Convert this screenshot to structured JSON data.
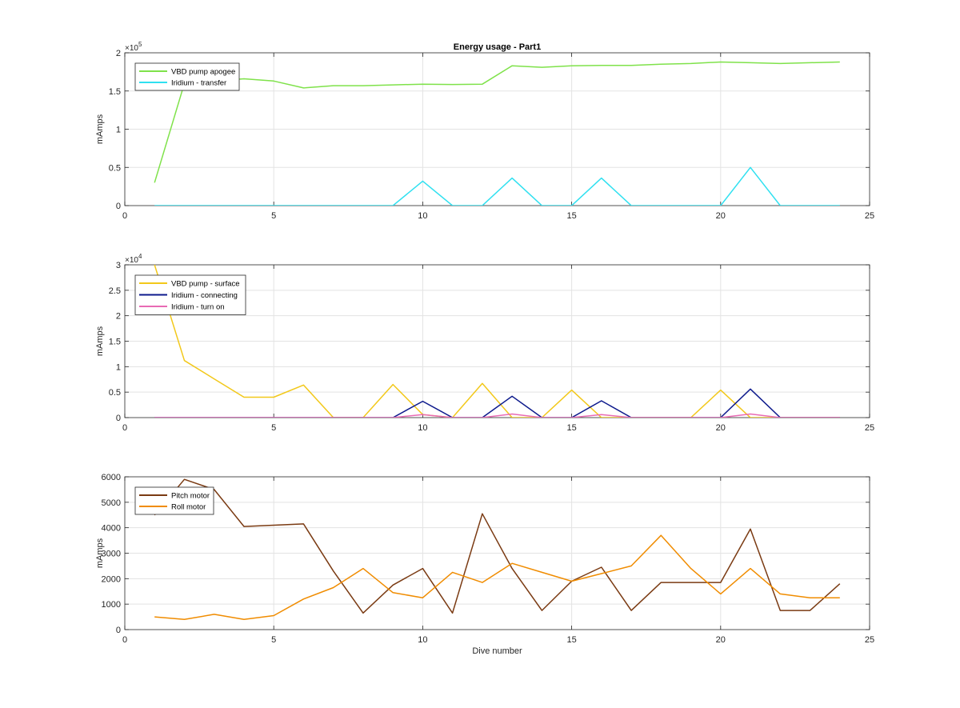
{
  "chart_data": [
    {
      "type": "line",
      "title": "Energy usage - Part1",
      "xlabel": "",
      "ylabel": "mAmps",
      "xlim": [
        0,
        25
      ],
      "ylim": [
        0,
        200000
      ],
      "xticks": [
        0,
        5,
        10,
        15,
        20,
        25
      ],
      "yticks": [
        0,
        50000,
        100000,
        150000,
        200000
      ],
      "ytick_labels": [
        "0",
        "0.5",
        "1",
        "1.5",
        "2"
      ],
      "y_exponent": "×10",
      "y_exponent_power": "5",
      "grid": true,
      "legend_position": "top-left",
      "series": [
        {
          "name": "VBD pump apogee",
          "color": "#7fe24a",
          "x": [
            1,
            2,
            3,
            4,
            5,
            6,
            7,
            8,
            9,
            10,
            11,
            12,
            13,
            14,
            15,
            16,
            17,
            18,
            19,
            20,
            21,
            22,
            23,
            24
          ],
          "y": [
            30000,
            160000,
            163000,
            166000,
            163000,
            154000,
            157000,
            157000,
            158000,
            159000,
            158500,
            159000,
            183000,
            181000,
            183000,
            183500,
            183500,
            185000,
            186000,
            188000,
            187000,
            186000,
            187000,
            188000
          ]
        },
        {
          "name": "Iridium - transfer",
          "color": "#2fe0f0",
          "x": [
            1,
            2,
            3,
            4,
            5,
            6,
            7,
            8,
            9,
            10,
            11,
            12,
            13,
            14,
            15,
            16,
            17,
            18,
            19,
            20,
            21,
            22,
            23,
            24
          ],
          "y": [
            0,
            0,
            0,
            0,
            0,
            0,
            0,
            0,
            0,
            32000,
            0,
            0,
            36000,
            0,
            0,
            36000,
            0,
            0,
            0,
            0,
            50000,
            0,
            0,
            0
          ]
        }
      ]
    },
    {
      "type": "line",
      "title": "",
      "xlabel": "",
      "ylabel": "mAmps",
      "xlim": [
        0,
        25
      ],
      "ylim": [
        0,
        30000
      ],
      "xticks": [
        0,
        5,
        10,
        15,
        20,
        25
      ],
      "yticks": [
        0,
        5000,
        10000,
        15000,
        20000,
        25000,
        30000
      ],
      "ytick_labels": [
        "0",
        "0.5",
        "1",
        "1.5",
        "2",
        "2.5",
        "3"
      ],
      "y_exponent": "×10",
      "y_exponent_power": "4",
      "grid": true,
      "legend_position": "top-left",
      "series": [
        {
          "name": "VBD pump - surface",
          "color": "#f2c81a",
          "x": [
            1,
            2,
            3,
            4,
            5,
            6,
            7,
            8,
            9,
            10,
            11,
            12,
            13,
            14,
            15,
            16,
            17,
            18,
            19,
            20,
            21,
            22,
            23,
            24
          ],
          "y": [
            30000,
            11200,
            7600,
            4000,
            4000,
            6400,
            0,
            0,
            6500,
            600,
            0,
            6700,
            0,
            0,
            5400,
            0,
            0,
            0,
            0,
            5400,
            0,
            0,
            0,
            0
          ]
        },
        {
          "name": "Iridium - connecting",
          "color": "#0d1a8c",
          "x": [
            1,
            2,
            3,
            4,
            5,
            6,
            7,
            8,
            9,
            10,
            11,
            12,
            13,
            14,
            15,
            16,
            17,
            18,
            19,
            20,
            21,
            22,
            23,
            24
          ],
          "y": [
            0,
            0,
            0,
            0,
            0,
            0,
            0,
            0,
            0,
            3200,
            0,
            0,
            4200,
            0,
            0,
            3300,
            0,
            0,
            0,
            0,
            5600,
            0,
            0,
            0
          ]
        },
        {
          "name": "Iridium - turn on",
          "color": "#e86ab4",
          "x": [
            1,
            2,
            3,
            4,
            5,
            6,
            7,
            8,
            9,
            10,
            11,
            12,
            13,
            14,
            15,
            16,
            17,
            18,
            19,
            20,
            21,
            22,
            23,
            24
          ],
          "y": [
            0,
            0,
            0,
            0,
            0,
            0,
            0,
            0,
            0,
            600,
            0,
            0,
            700,
            0,
            0,
            600,
            0,
            0,
            0,
            0,
            700,
            0,
            0,
            0
          ]
        }
      ]
    },
    {
      "type": "line",
      "title": "",
      "xlabel": "Dive number",
      "ylabel": "mAmps",
      "xlim": [
        0,
        25
      ],
      "ylim": [
        0,
        6000
      ],
      "xticks": [
        0,
        5,
        10,
        15,
        20,
        25
      ],
      "yticks": [
        0,
        1000,
        2000,
        3000,
        4000,
        5000,
        6000
      ],
      "ytick_labels": [
        "0",
        "1000",
        "2000",
        "3000",
        "4000",
        "5000",
        "6000"
      ],
      "y_exponent": "",
      "y_exponent_power": "",
      "grid": true,
      "legend_position": "top-left",
      "series": [
        {
          "name": "Pitch motor",
          "color": "#7a3a12",
          "x": [
            1,
            2,
            3,
            4,
            5,
            6,
            7,
            8,
            9,
            10,
            11,
            12,
            13,
            14,
            15,
            16,
            17,
            18,
            19,
            20,
            21,
            22,
            23,
            24
          ],
          "y": [
            4500,
            5900,
            5500,
            4050,
            4100,
            4150,
            2300,
            650,
            1750,
            2400,
            650,
            4550,
            2400,
            750,
            1900,
            2450,
            750,
            1850,
            1850,
            1850,
            3950,
            750,
            750,
            1800
          ]
        },
        {
          "name": "Roll motor",
          "color": "#f08c00",
          "x": [
            1,
            2,
            3,
            4,
            5,
            6,
            7,
            8,
            9,
            10,
            11,
            12,
            13,
            14,
            15,
            16,
            17,
            18,
            19,
            20,
            21,
            22,
            23,
            24
          ],
          "y": [
            500,
            400,
            600,
            400,
            550,
            1200,
            1650,
            2400,
            1450,
            1250,
            2250,
            1850,
            2600,
            2250,
            1900,
            2200,
            2500,
            3700,
            2400,
            1400,
            2400,
            1400,
            1250,
            1250
          ]
        }
      ]
    }
  ]
}
